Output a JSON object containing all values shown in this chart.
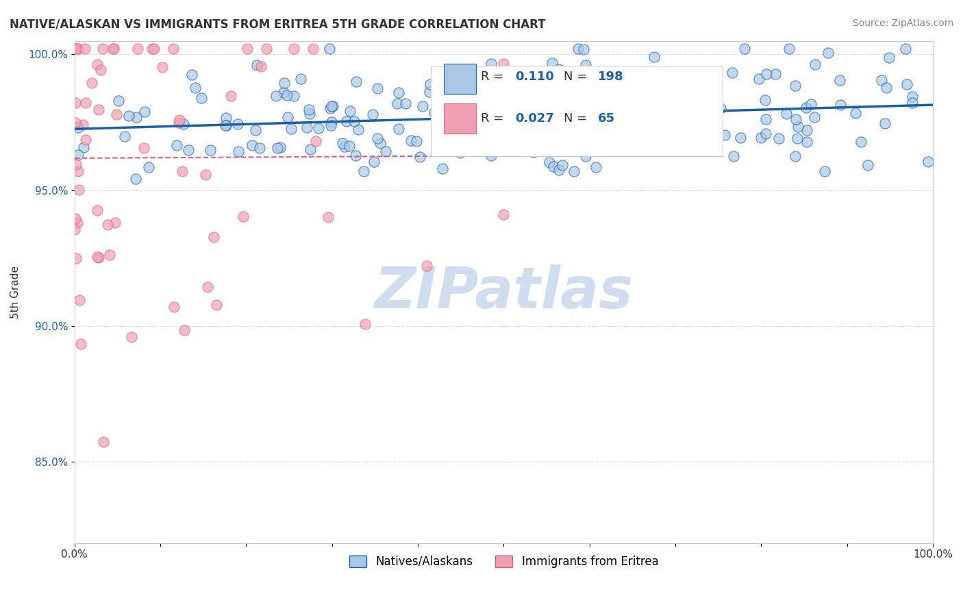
{
  "title": "NATIVE/ALASKAN VS IMMIGRANTS FROM ERITREA 5TH GRADE CORRELATION CHART",
  "source_text": "Source: ZipAtlas.com",
  "ylabel": "5th Grade",
  "xlabel": "",
  "watermark": "ZIPatlas",
  "xlim": [
    0.0,
    1.0
  ],
  "ylim": [
    0.82,
    1.005
  ],
  "yticks": [
    0.85,
    0.9,
    0.95,
    1.0
  ],
  "ytick_labels": [
    "85.0%",
    "90.0%",
    "95.0%",
    "100.0%"
  ],
  "xticks": [
    0.0,
    0.1,
    0.2,
    0.3,
    0.4,
    0.5,
    0.6,
    0.7,
    0.8,
    0.9,
    1.0
  ],
  "xtick_labels": [
    "0.0%",
    "",
    "",
    "",
    "",
    "",
    "",
    "",
    "",
    "",
    "100.0%"
  ],
  "blue_R": 0.11,
  "blue_N": 198,
  "pink_R": 0.027,
  "pink_N": 65,
  "blue_color": "#a8c8e8",
  "pink_color": "#f0a0b0",
  "blue_line_color": "#1a5fa8",
  "pink_line_color": "#e06080",
  "legend_label_blue": "Natives/Alaskans",
  "legend_label_pink": "Immigrants from Eritrea",
  "background_color": "#ffffff",
  "grid_color": "#cccccc",
  "title_fontsize": 12,
  "watermark_color": "#d0ddf0",
  "seed": 42
}
